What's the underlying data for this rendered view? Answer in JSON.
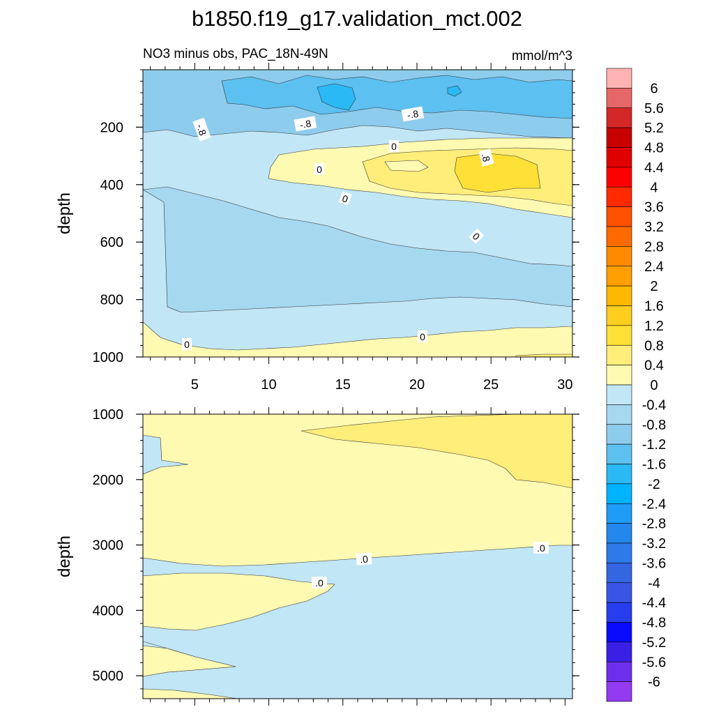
{
  "chart_data": {
    "type": "heatmap",
    "title": "b1850.f19_g17.validation_mct.002",
    "subtitle_left": "NO3 minus obs, PAC_18N-49N",
    "subtitle_right": "mmol/m^3",
    "panels": [
      {
        "id": "upper",
        "ylabel": "depth",
        "ylim": [
          0,
          1000
        ],
        "yticks": [
          "200",
          "400",
          "600",
          "800",
          "1000"
        ],
        "xlim": [
          1.5,
          30.5
        ],
        "xticks": [
          "5",
          "10",
          "15",
          "20",
          "25",
          "30"
        ],
        "contour_labels": [
          "-.8",
          "-.8",
          "-.8",
          "0",
          "0",
          "0",
          ".8",
          "0",
          "0",
          "0"
        ]
      },
      {
        "id": "lower",
        "ylabel": "depth",
        "ylim": [
          1000,
          5350
        ],
        "yticks": [
          "1000",
          "2000",
          "3000",
          "4000",
          "5000"
        ],
        "xlim": [
          1.5,
          30.5
        ],
        "contour_labels": [
          ".0",
          ".0",
          ".0"
        ]
      }
    ],
    "colorbar": {
      "labels": [
        "6",
        "5.6",
        "5.2",
        "4.8",
        "4.4",
        "4",
        "3.6",
        "3.2",
        "2.8",
        "2.4",
        "2",
        "1.6",
        "1.2",
        "0.8",
        "0.4",
        "0",
        "-0.4",
        "-0.8",
        "-1.2",
        "-1.6",
        "-2",
        "-2.4",
        "-2.8",
        "-3.2",
        "-3.6",
        "-4",
        "-4.4",
        "-4.8",
        "-5.2",
        "-5.6",
        "-6"
      ],
      "colors": [
        "#FFB3B3",
        "#E66767",
        "#D42828",
        "#C80000",
        "#E10000",
        "#FF0000",
        "#FF2A00",
        "#FF4F00",
        "#FF6A00",
        "#FF8A00",
        "#FFA000",
        "#FFB800",
        "#FFCE1E",
        "#FFE036",
        "#FFEE7A",
        "#FFFAB2",
        "#C1E6F6",
        "#A6D8F0",
        "#8ECCEE",
        "#5CC0F0",
        "#2AB9F4",
        "#00B3FF",
        "#1E9CF6",
        "#2387EB",
        "#2E7AE9",
        "#3466E1",
        "#3A55E6",
        "#283DEF",
        "#0A0AFF",
        "#3A20E6",
        "#6E2FEC",
        "#9339F0"
      ]
    }
  }
}
